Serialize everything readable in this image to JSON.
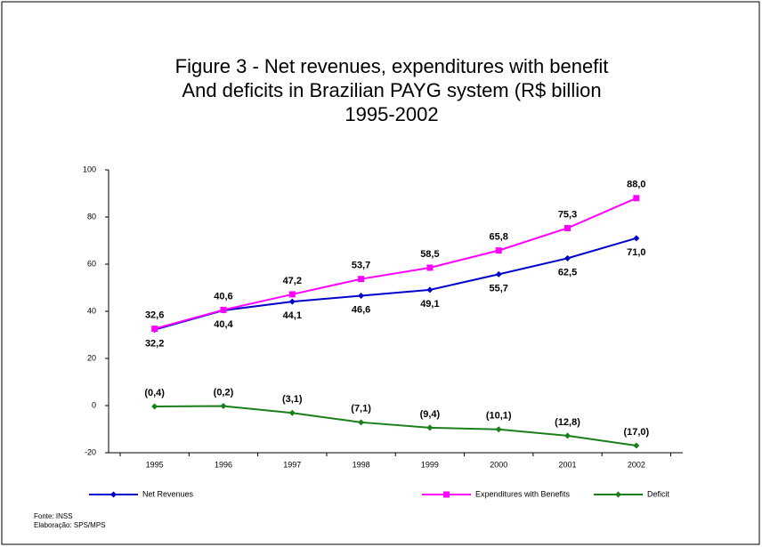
{
  "chart_data": {
    "type": "line",
    "title": [
      "Figure 3  - Net revenues, expenditures with benefit",
      "And deficits in Brazilian PAYG system (R$ billion",
      "1995-2002"
    ],
    "categories": [
      "1995",
      "1996",
      "1997",
      "1998",
      "1999",
      "2000",
      "2001",
      "2002"
    ],
    "series": [
      {
        "name": "Net Revenues",
        "color": "#0000cc",
        "marker": "diamond",
        "label_position": "below",
        "values": [
          32.2,
          40.4,
          44.1,
          46.6,
          49.1,
          55.7,
          62.5,
          71.0
        ],
        "value_labels": [
          "32,2",
          "40,4",
          "44,1",
          "46,6",
          "49,1",
          "55,7",
          "62,5",
          "71,0"
        ]
      },
      {
        "name": "Expenditures with Benefits",
        "color": "#ff00ff",
        "marker": "square",
        "label_position": "above",
        "values": [
          32.6,
          40.6,
          47.2,
          53.7,
          58.5,
          65.8,
          75.3,
          88.0
        ],
        "value_labels": [
          "32,6",
          "40,6",
          "47,2",
          "53,7",
          "58,5",
          "65,8",
          "75,3",
          "88,0"
        ]
      },
      {
        "name": "Deficit",
        "color": "#1a7f1a",
        "marker": "diamond",
        "label_position": "above",
        "values": [
          -0.4,
          -0.2,
          -3.1,
          -7.1,
          -9.4,
          -10.1,
          -12.8,
          -17.0
        ],
        "value_labels": [
          "(0,4)",
          "(0,2)",
          "(3,1)",
          "(7,1)",
          "(9,4)",
          "(10,1)",
          "(12,8)",
          "(17,0)"
        ]
      }
    ],
    "ylim": [
      -20,
      100
    ],
    "yticks": [
      -20,
      0,
      20,
      40,
      60,
      80,
      100
    ],
    "grid": false,
    "legend": "bottom",
    "notes": [
      "Fonte: INSS",
      "Elaboração: SPS/MPS"
    ]
  }
}
